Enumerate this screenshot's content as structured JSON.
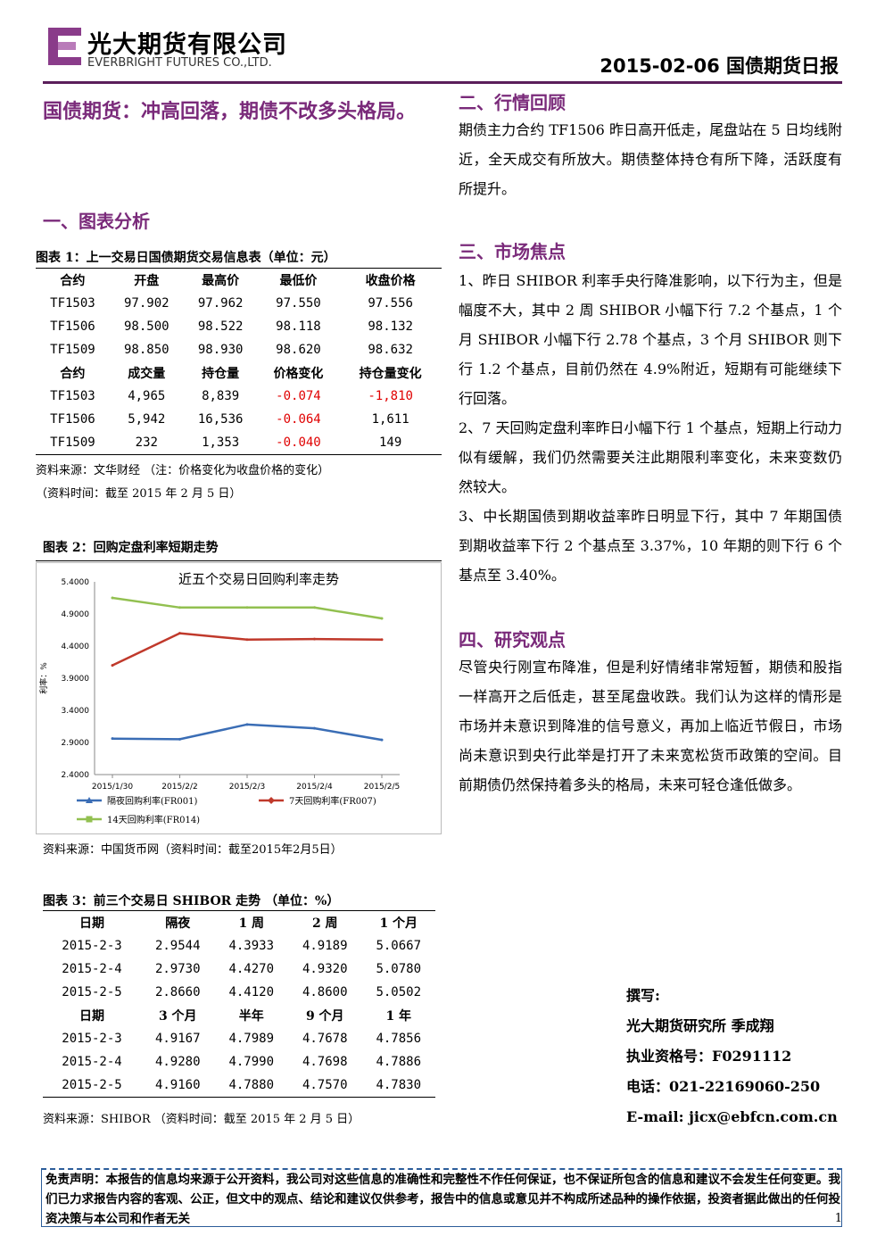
{
  "header": {
    "company_cn": "光大期货有限公司",
    "company_en": "EVERBRIGHT FUTURES CO.,LTD.",
    "report_title": "2015-02-06 国债期货日报",
    "accent": "#7a2a7a"
  },
  "headline": "国债期货：冲高回落，期债不改多头格局。",
  "section1": {
    "title": "一、图表分析",
    "table1": {
      "caption": "图表 1：上一交易日国债期货交易信息表（单位：元）",
      "head1": [
        "合约",
        "开盘",
        "最高价",
        "最低价",
        "收盘价格"
      ],
      "rows1": [
        [
          "TF1503",
          "97.902",
          "97.962",
          "97.550",
          "97.556"
        ],
        [
          "TF1506",
          "98.500",
          "98.522",
          "98.118",
          "98.132"
        ],
        [
          "TF1509",
          "98.850",
          "98.930",
          "98.620",
          "98.632"
        ]
      ],
      "head2": [
        "合约",
        "成交量",
        "持仓量",
        "价格变化",
        "持仓量变化"
      ],
      "rows2": [
        [
          "TF1503",
          "4,965",
          "8,839",
          "-0.074",
          "-1,810"
        ],
        [
          "TF1506",
          "5,942",
          "16,536",
          "-0.064",
          "1,611"
        ],
        [
          "TF1509",
          "232",
          "1,353",
          "-0.040",
          "149"
        ]
      ],
      "source": "资料来源：文华财经  （注：价格变化为收盘价格的变化）",
      "source_time": "（资料时间：截至 2015 年 2 月 5 日）"
    },
    "chart_caption": "图表 2：回购定盘利率短期走势",
    "chart_source": "资料来源：中国货币网（资料时间：截至2015年2月5日）",
    "table3": {
      "caption": "图表 3：前三个交易日 SHIBOR 走势 （单位：%）",
      "head1": [
        "日期",
        "隔夜",
        "1 周",
        "2 周",
        "1 个月"
      ],
      "rows1": [
        [
          "2015-2-3",
          "2.9544",
          "4.3933",
          "4.9189",
          "5.0667"
        ],
        [
          "2015-2-4",
          "2.9730",
          "4.4270",
          "4.9320",
          "5.0780"
        ],
        [
          "2015-2-5",
          "2.8660",
          "4.4120",
          "4.8600",
          "5.0502"
        ]
      ],
      "head2": [
        "日期",
        "3 个月",
        "半年",
        "9 个月",
        "1 年"
      ],
      "rows2": [
        [
          "2015-2-3",
          "4.9167",
          "4.7989",
          "4.7678",
          "4.7856"
        ],
        [
          "2015-2-4",
          "4.9280",
          "4.7990",
          "4.7698",
          "4.7886"
        ],
        [
          "2015-2-5",
          "4.9160",
          "4.7880",
          "4.7570",
          "4.7830"
        ]
      ],
      "source": "资料来源：SHIBOR （资料时间：截至 2015 年 2 月 5 日）"
    }
  },
  "chart_data": {
    "type": "line",
    "title": "近五个交易日回购利率走势",
    "ylabel": "利率：%",
    "categories": [
      "2015/1/30",
      "2015/2/2",
      "2015/2/3",
      "2015/2/4",
      "2015/2/5"
    ],
    "ylim": [
      2.4,
      5.4
    ],
    "yticks": [
      "5.4000",
      "4.9000",
      "4.4000",
      "3.9000",
      "3.4000",
      "2.9000",
      "2.4000"
    ],
    "series": [
      {
        "name": "隔夜回购利率(FR001)",
        "color": "#3a6db5",
        "marker": "triangle",
        "values": [
          2.96,
          2.95,
          3.18,
          3.12,
          2.94
        ]
      },
      {
        "name": "7天回购利率(FR007)",
        "color": "#c0392b",
        "marker": "diamond",
        "values": [
          4.1,
          4.6,
          4.5,
          4.51,
          4.5
        ]
      },
      {
        "name": "14天回购利率(FR014)",
        "color": "#92c050",
        "marker": "square",
        "values": [
          5.15,
          5.0,
          5.0,
          5.0,
          4.83
        ]
      }
    ]
  },
  "section2": {
    "title": "二、行情回顾",
    "text": "期债主力合约 TF1506 昨日高开低走，尾盘站在 5 日均线附近，全天成交有所放大。期债整体持仓有所下降，活跃度有所提升。"
  },
  "section3": {
    "title": "三、市场焦点",
    "p1": "1、昨日 SHIBOR 利率手央行降准影响，以下行为主，但是幅度不大，其中 2 周 SHIBOR 小幅下行 7.2 个基点，1 个月 SHIBOR 小幅下行 2.78 个基点，3 个月 SHIBOR 则下行 1.2 个基点，目前仍然在 4.9%附近，短期有可能继续下行回落。",
    "p2": "2、7 天回购定盘利率昨日小幅下行 1 个基点，短期上行动力似有缓解，我们仍然需要关注此期限利率变化，未来变数仍然较大。",
    "p3": "3、中长期国债到期收益率昨日明显下行，其中 7 年期国债到期收益率下行 2 个基点至 3.37%，10 年期的则下行 6 个基点至 3.40%。"
  },
  "section4": {
    "title": "四、研究观点",
    "text": "尽管央行刚宣布降准，但是利好情绪非常短暂，期债和股指一样高开之后低走，甚至尾盘收跌。我们认为这样的情形是市场并未意识到降准的信号意义，再加上临近节假日，市场尚未意识到央行此举是打开了未来宽松货币政策的空间。目前期债仍然保持着多头的格局，未来可轻仓逢低做多。"
  },
  "author": {
    "label": "撰写:",
    "name": "光大期货研究所 季成翔",
    "cert": "执业资格号：F0291112",
    "phone": "电话：021-22169060-250",
    "email": "E-mail: jicx@ebfcn.com.cn"
  },
  "disclaimer": "免责声明：本报告的信息均来源于公开资料，我公司对这些信息的准确性和完整性不作任何保证，也不保证所包含的信息和建议不会发生任何变更。我们已力求报告内容的客观、公正，但文中的观点、结论和建议仅供参考，报告中的信息或意见并不构成所述品种的操作依据，投资者据此做出的任何投资决策与本公司和作者无关",
  "page_number": "1"
}
